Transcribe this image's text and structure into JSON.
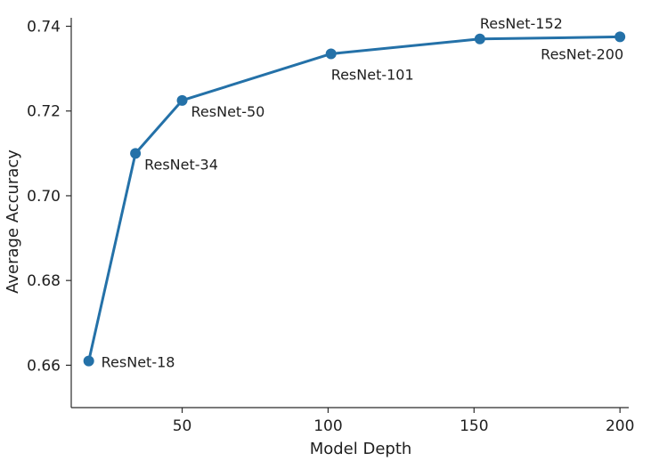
{
  "chart_data": {
    "type": "line",
    "title": "",
    "xlabel": "Model Depth",
    "ylabel": "Average Accuracy",
    "xlim": [
      12,
      203
    ],
    "ylim": [
      0.65,
      0.742
    ],
    "xticks": [
      50,
      100,
      150,
      200
    ],
    "yticks": [
      0.66,
      0.68,
      0.7,
      0.72,
      0.74
    ],
    "xtick_labels": [
      "50",
      "100",
      "150",
      "200"
    ],
    "ytick_labels": [
      "0.66",
      "0.68",
      "0.70",
      "0.72",
      "0.74"
    ],
    "grid": false,
    "legend": "none",
    "line_color": "#2471a8",
    "series": [
      {
        "points": [
          {
            "x": 18,
            "y": 0.661,
            "label": "ResNet-18",
            "label_pos": "right"
          },
          {
            "x": 34,
            "y": 0.71,
            "label": "ResNet-34",
            "label_pos": "below-right"
          },
          {
            "x": 50,
            "y": 0.7225,
            "label": "ResNet-50",
            "label_pos": "below-right"
          },
          {
            "x": 101,
            "y": 0.7335,
            "label": "ResNet-101",
            "label_pos": "below"
          },
          {
            "x": 152,
            "y": 0.737,
            "label": "ResNet-152",
            "label_pos": "above"
          },
          {
            "x": 200,
            "y": 0.7375,
            "label": "ResNet-200",
            "label_pos": "below-left"
          }
        ]
      }
    ]
  }
}
